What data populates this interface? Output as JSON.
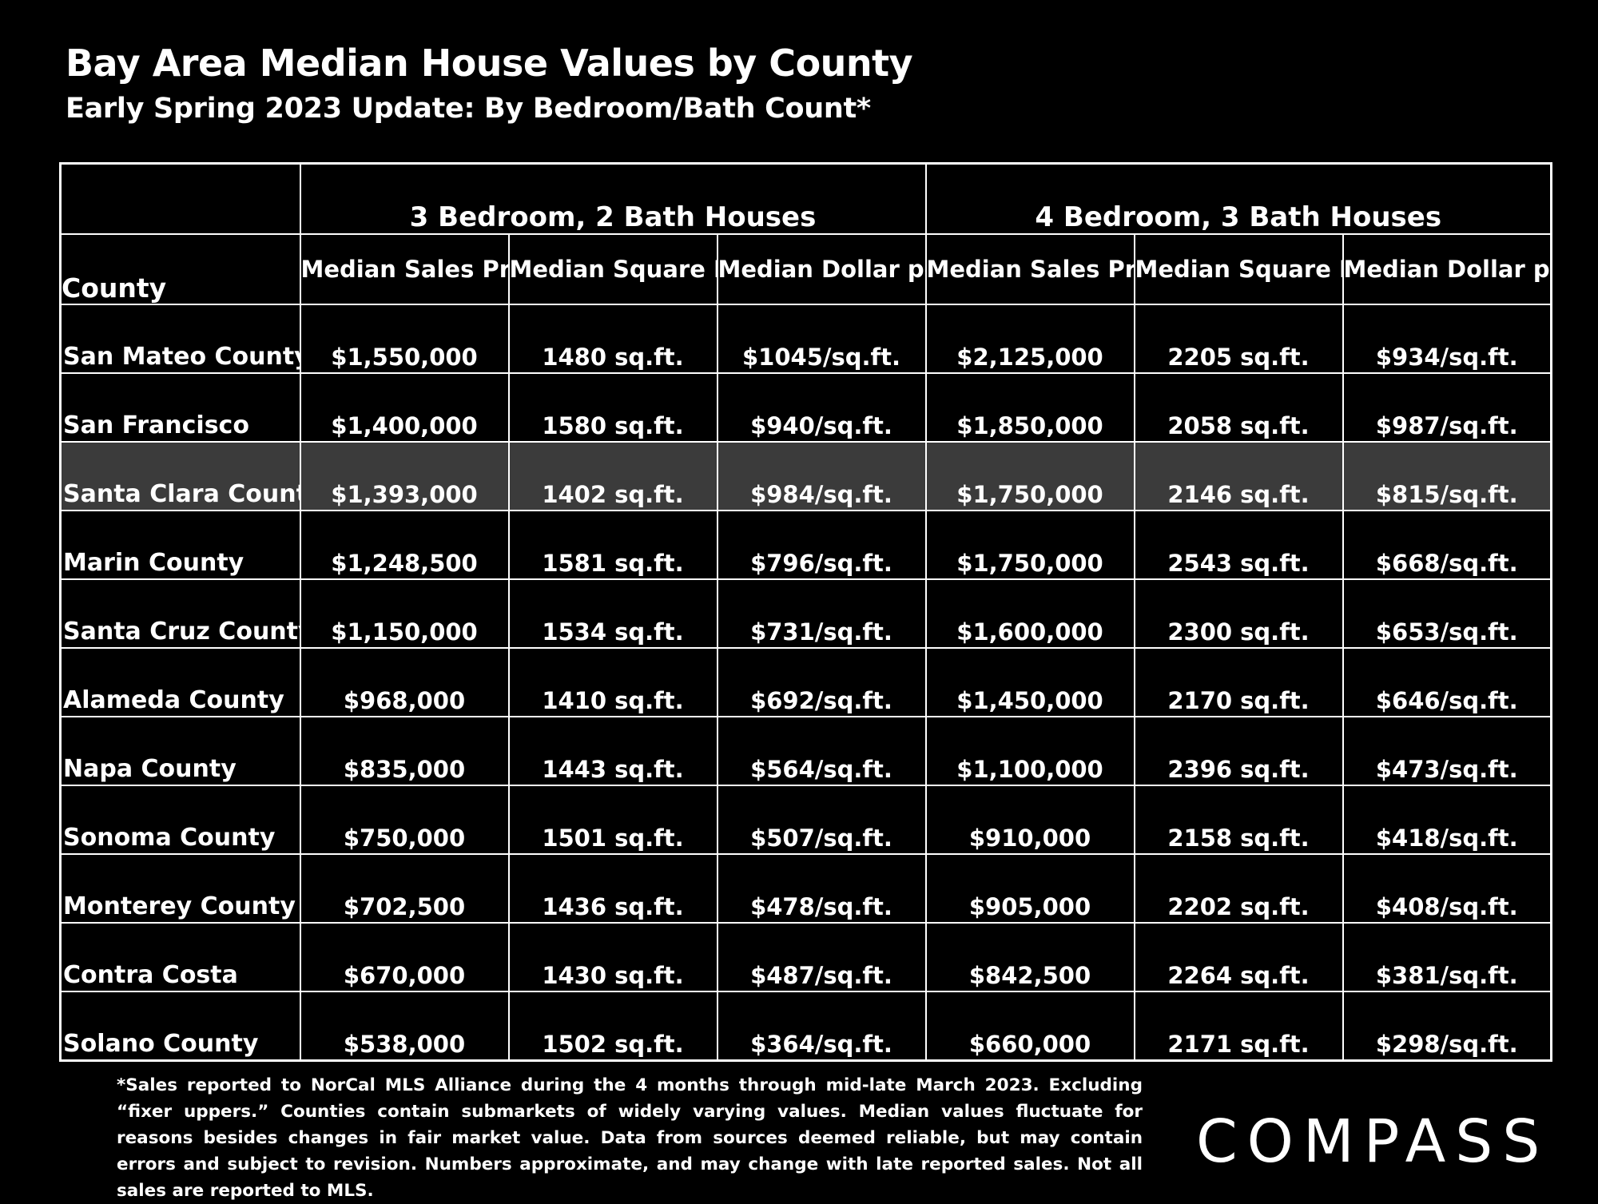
{
  "header": {
    "title": "Bay Area Median House Values by County",
    "subtitle": "Early Spring 2023 Update:  By Bedroom/Bath Count*"
  },
  "chart_data": {
    "type": "table",
    "title": "Bay Area Median House Values by County",
    "subtitle": "Early Spring 2023 Update:  By Bedroom/Bath Count*",
    "groups": [
      "3 Bedroom, 2 Bath Houses",
      "4 Bedroom, 3 Bath Houses"
    ],
    "county_header": "County",
    "columns": [
      "Median Sales Price",
      "Median Square Footage",
      "Median Dollar per Square Foot",
      "Median Sales Price",
      "Median Square Footage",
      "Median Dollar per Square Foot"
    ],
    "highlight_row": 2,
    "rows": [
      {
        "county": "San Mateo County",
        "values": [
          "$1,550,000",
          "1480 sq.ft.",
          "$1045/sq.ft.",
          "$2,125,000",
          "2205 sq.ft.",
          "$934/sq.ft."
        ]
      },
      {
        "county": "San Francisco",
        "values": [
          "$1,400,000",
          "1580 sq.ft.",
          "$940/sq.ft.",
          "$1,850,000",
          "2058 sq.ft.",
          "$987/sq.ft."
        ]
      },
      {
        "county": "Santa Clara County",
        "values": [
          "$1,393,000",
          "1402 sq.ft.",
          "$984/sq.ft.",
          "$1,750,000",
          "2146 sq.ft.",
          "$815/sq.ft."
        ]
      },
      {
        "county": "Marin County",
        "values": [
          "$1,248,500",
          "1581 sq.ft.",
          "$796/sq.ft.",
          "$1,750,000",
          "2543 sq.ft.",
          "$668/sq.ft."
        ]
      },
      {
        "county": "Santa Cruz County",
        "values": [
          "$1,150,000",
          "1534 sq.ft.",
          "$731/sq.ft.",
          "$1,600,000",
          "2300 sq.ft.",
          "$653/sq.ft."
        ]
      },
      {
        "county": "Alameda County",
        "values": [
          "$968,000",
          "1410 sq.ft.",
          "$692/sq.ft.",
          "$1,450,000",
          "2170 sq.ft.",
          "$646/sq.ft."
        ]
      },
      {
        "county": "Napa County",
        "values": [
          "$835,000",
          "1443 sq.ft.",
          "$564/sq.ft.",
          "$1,100,000",
          "2396 sq.ft.",
          "$473/sq.ft."
        ]
      },
      {
        "county": "Sonoma County",
        "values": [
          "$750,000",
          "1501 sq.ft.",
          "$507/sq.ft.",
          "$910,000",
          "2158 sq.ft.",
          "$418/sq.ft."
        ]
      },
      {
        "county": "Monterey County",
        "values": [
          "$702,500",
          "1436 sq.ft.",
          "$478/sq.ft.",
          "$905,000",
          "2202 sq.ft.",
          "$408/sq.ft."
        ]
      },
      {
        "county": "Contra Costa",
        "values": [
          "$670,000",
          "1430 sq.ft.",
          "$487/sq.ft.",
          "$842,500",
          "2264 sq.ft.",
          "$381/sq.ft."
        ]
      },
      {
        "county": "Solano County",
        "values": [
          "$538,000",
          "1502 sq.ft.",
          "$364/sq.ft.",
          "$660,000",
          "2171 sq.ft.",
          "$298/sq.ft."
        ]
      }
    ]
  },
  "footnote": "*Sales reported to NorCal MLS Alliance during the 4 months through mid-late March 2023. Excluding “fixer uppers.” Counties contain submarkets of widely varying values. Median values fluctuate for reasons besides changes in fair market value. Data from sources deemed reliable, but may contain errors and subject to revision.  Numbers approximate, and may change with late reported sales. Not all sales are reported to MLS.",
  "brand": {
    "logo_text": "COMPASS"
  }
}
